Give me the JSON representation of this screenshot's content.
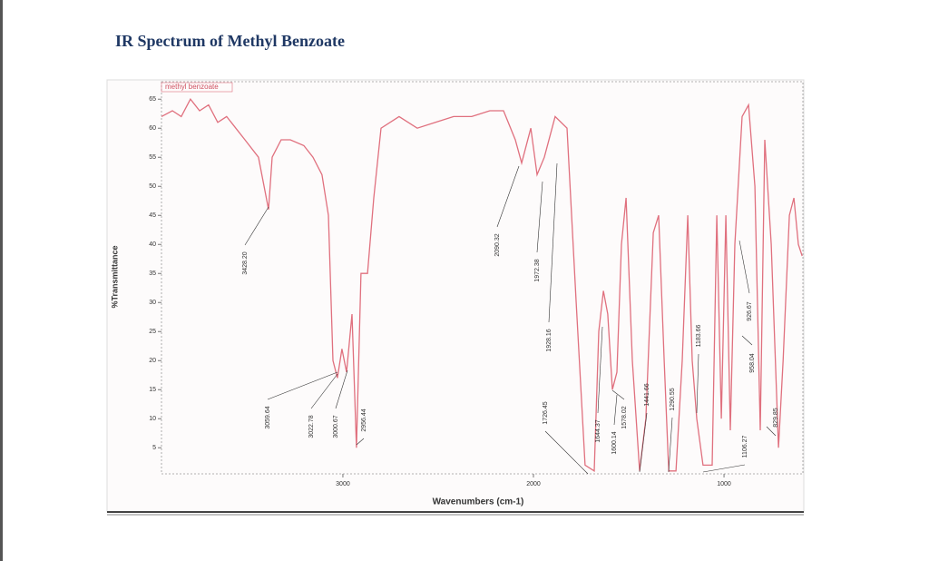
{
  "chart_data": {
    "type": "line",
    "title": "IR Spectrum of Methyl Benzoate",
    "xlabel": "Wavenumbers (cm-1)",
    "ylabel": "%Transmittance",
    "xlim": [
      3952,
      586
    ],
    "ylim": [
      0.5,
      68
    ],
    "xticks": [
      3000,
      2000,
      1000
    ],
    "yticks": [
      5,
      10,
      15,
      20,
      25,
      30,
      35,
      40,
      45,
      50,
      55,
      60,
      65
    ],
    "x": [
      3952,
      3895,
      3848,
      3800,
      3752,
      3705,
      3657,
      3610,
      3562,
      3514,
      3443,
      3390,
      3371,
      3324,
      3276,
      3205,
      3157,
      3110,
      3076,
      3052,
      3029,
      3005,
      2981,
      2952,
      2929,
      2905,
      2871,
      2838,
      2800,
      2705,
      2610,
      2514,
      2419,
      2324,
      2229,
      2157,
      2095,
      2062,
      2014,
      1981,
      1943,
      1886,
      1824,
      1776,
      1729,
      1681,
      1657,
      1633,
      1610,
      1586,
      1562,
      1538,
      1514,
      1481,
      1443,
      1410,
      1371,
      1343,
      1314,
      1290,
      1252,
      1219,
      1190,
      1167,
      1143,
      1110,
      1062,
      1038,
      1014,
      990,
      967,
      943,
      905,
      871,
      838,
      810,
      786,
      752,
      714,
      690,
      657,
      633,
      610,
      590
    ],
    "series": [
      {
        "name": "methyl benzoate",
        "color": "#e0707e",
        "values": [
          62,
          63,
          62,
          65,
          63,
          64,
          61,
          62,
          60,
          58,
          55,
          46,
          55,
          58,
          58,
          57,
          55,
          52,
          45,
          20,
          17,
          22,
          18,
          28,
          5,
          35,
          35,
          48,
          60,
          62,
          60,
          61,
          62,
          62,
          63,
          63,
          58,
          54,
          60,
          52,
          55,
          62,
          60,
          30,
          2,
          1,
          25,
          32,
          28,
          15,
          18,
          40,
          48,
          20,
          1,
          10,
          42,
          45,
          20,
          1,
          1,
          20,
          45,
          20,
          10,
          2,
          2,
          45,
          10,
          45,
          8,
          40,
          62,
          64,
          50,
          8,
          58,
          40,
          5,
          20,
          45,
          48,
          40,
          38
        ]
      }
    ],
    "annotations": [
      "3428.20",
      "3059.64",
      "3022.78",
      "3000.67",
      "2956.44",
      "2090.32",
      "1972.38",
      "1928.16",
      "1726.45",
      "1644.37",
      "1600.14",
      "1578.02",
      "1441.66",
      "1290.55",
      "1183.66",
      "1106.27",
      "958.04",
      "926.67",
      "829.85"
    ]
  }
}
